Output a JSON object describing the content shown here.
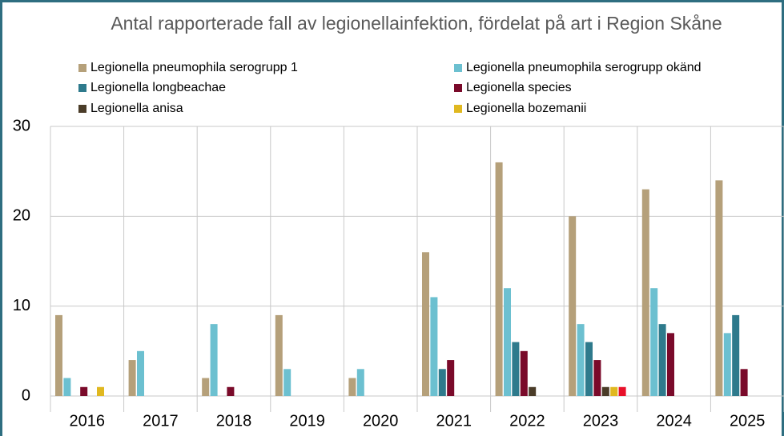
{
  "chart_data": {
    "type": "bar",
    "title": "Antal rapporterade fall av legionellainfektion, fördelat på art i Region Skåne",
    "categories": [
      "2016",
      "2017",
      "2018",
      "2019",
      "2020",
      "2021",
      "2022",
      "2023",
      "2024",
      "2025"
    ],
    "series": [
      {
        "name": "Legionella pneumophila serogrupp 1",
        "color": "#b5a07a",
        "values": [
          9,
          4,
          2,
          9,
          2,
          16,
          26,
          20,
          23,
          24
        ]
      },
      {
        "name": "Legionella pneumophila serogrupp okänd",
        "color": "#6cc0d0",
        "values": [
          2,
          5,
          8,
          3,
          3,
          11,
          12,
          8,
          12,
          7
        ]
      },
      {
        "name": "Legionella longbeachae",
        "color": "#2e7a8c",
        "values": [
          0,
          0,
          0,
          0,
          0,
          3,
          6,
          6,
          8,
          9
        ]
      },
      {
        "name": "Legionella species",
        "color": "#7a0a2a",
        "values": [
          1,
          0,
          1,
          0,
          0,
          4,
          5,
          4,
          7,
          3
        ]
      },
      {
        "name": "Legionella anisa",
        "color": "#4a3c28",
        "values": [
          0,
          0,
          0,
          0,
          0,
          0,
          1,
          1,
          0,
          0
        ]
      },
      {
        "name": "Legionella bozemanii",
        "color": "#e0b820",
        "values": [
          1,
          0,
          0,
          0,
          0,
          0,
          0,
          1,
          0,
          0
        ]
      },
      {
        "color": "#e8102a",
        "values": [
          0,
          0,
          0,
          0,
          0,
          0,
          0,
          1,
          0,
          0
        ]
      }
    ],
    "ylim": [
      0,
      30
    ],
    "yticks": [
      0,
      10,
      20,
      30
    ],
    "grid": true
  }
}
